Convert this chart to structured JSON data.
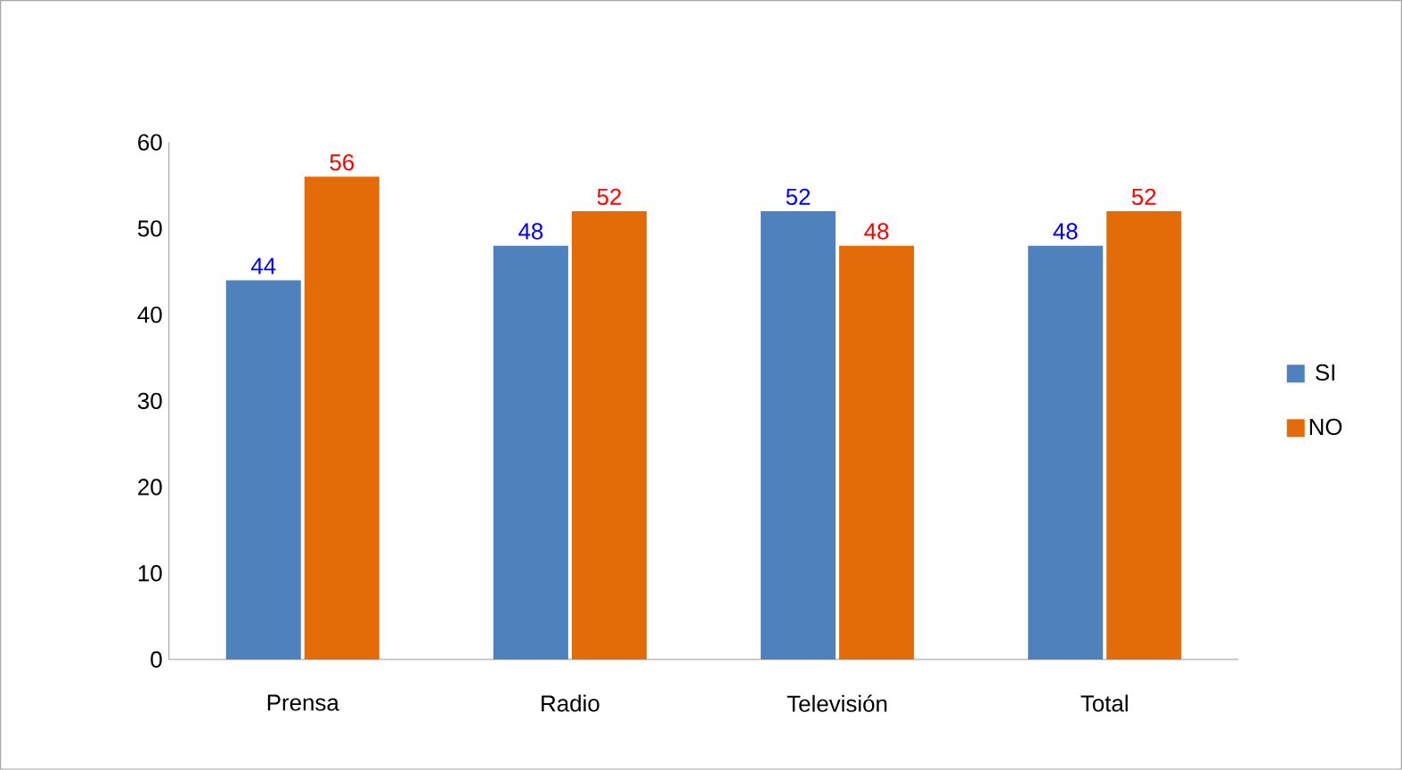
{
  "chart_data": {
    "type": "bar",
    "categories": [
      "Prensa",
      "Radio",
      "Televisión",
      "Total"
    ],
    "series": [
      {
        "name": "SI",
        "color": "#4f81bd",
        "values": [
          44,
          48,
          52,
          48
        ]
      },
      {
        "name": "NO",
        "color": "#e36c09",
        "values": [
          56,
          52,
          48,
          52
        ]
      }
    ],
    "ylim": [
      0,
      60
    ],
    "yticks": [
      0,
      10,
      20,
      30,
      40,
      50,
      60
    ],
    "data_labels": true,
    "legend": "right",
    "grid": false
  }
}
